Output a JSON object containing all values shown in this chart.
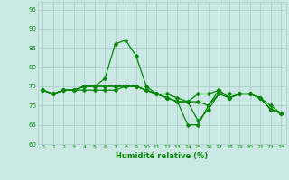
{
  "xlabel": "Humidité relative (%)",
  "xlim": [
    -0.5,
    23.5
  ],
  "ylim": [
    60,
    97
  ],
  "yticks": [
    60,
    65,
    70,
    75,
    80,
    85,
    90,
    95
  ],
  "xticks": [
    0,
    1,
    2,
    3,
    4,
    5,
    6,
    7,
    8,
    9,
    10,
    11,
    12,
    13,
    14,
    15,
    16,
    17,
    18,
    19,
    20,
    21,
    22,
    23
  ],
  "bg_color": "#cce8e4",
  "grid_color": "#aacfcb",
  "line_color": "#008800",
  "lines": [
    [
      74,
      73,
      74,
      74,
      75,
      75,
      77,
      86,
      87,
      83,
      75,
      73,
      72,
      71,
      71,
      73,
      73,
      74,
      72,
      73,
      73,
      72,
      69,
      68
    ],
    [
      74,
      73,
      74,
      74,
      74,
      74,
      74,
      74,
      75,
      75,
      74,
      73,
      72,
      71,
      65,
      65,
      70,
      73,
      73,
      73,
      73,
      72,
      69,
      68
    ],
    [
      74,
      73,
      74,
      74,
      75,
      75,
      75,
      75,
      75,
      75,
      74,
      73,
      73,
      72,
      71,
      66,
      69,
      73,
      72,
      73,
      73,
      72,
      70,
      68
    ],
    [
      74,
      73,
      74,
      74,
      75,
      75,
      75,
      75,
      75,
      75,
      74,
      73,
      72,
      71,
      71,
      71,
      70,
      74,
      72,
      73,
      73,
      72,
      69,
      68
    ]
  ],
  "markersize": 2.5,
  "linewidth": 0.9
}
